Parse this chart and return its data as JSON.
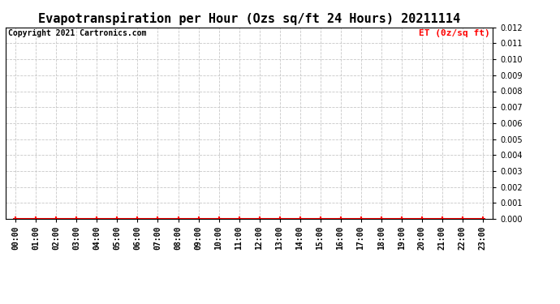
{
  "title": "Evapotranspiration per Hour (Ozs sq/ft 24 Hours) 20211114",
  "copyright_text": "Copyright 2021 Cartronics.com",
  "legend_label": "ET (0z/sq ft)",
  "x_labels": [
    "00:00",
    "01:00",
    "02:00",
    "03:00",
    "04:00",
    "05:00",
    "06:00",
    "07:00",
    "08:00",
    "09:00",
    "10:00",
    "11:00",
    "12:00",
    "13:00",
    "14:00",
    "15:00",
    "16:00",
    "17:00",
    "18:00",
    "19:00",
    "20:00",
    "21:00",
    "22:00",
    "23:00"
  ],
  "y_values": [
    0.0,
    0.0,
    0.0,
    0.0,
    0.0,
    0.0,
    0.0,
    0.0,
    0.0,
    0.0,
    0.0,
    0.0,
    0.0,
    0.0,
    0.0,
    0.0,
    0.0,
    0.0,
    0.0,
    0.0,
    0.0,
    0.0,
    0.0,
    0.0
  ],
  "ylim": [
    0.0,
    0.012
  ],
  "yticks": [
    0.0,
    0.001,
    0.002,
    0.003,
    0.004,
    0.005,
    0.006,
    0.007,
    0.008,
    0.009,
    0.01,
    0.011,
    0.012
  ],
  "line_color": "#ff0000",
  "marker": "+",
  "marker_color": "#ff0000",
  "grid_color": "#c8c8c8",
  "background_color": "#ffffff",
  "title_fontsize": 11,
  "title_fontweight": "bold",
  "copyright_fontsize": 7,
  "legend_fontsize": 8,
  "tick_fontsize": 7,
  "tick_fontweight": "bold",
  "spine_color": "#000000"
}
